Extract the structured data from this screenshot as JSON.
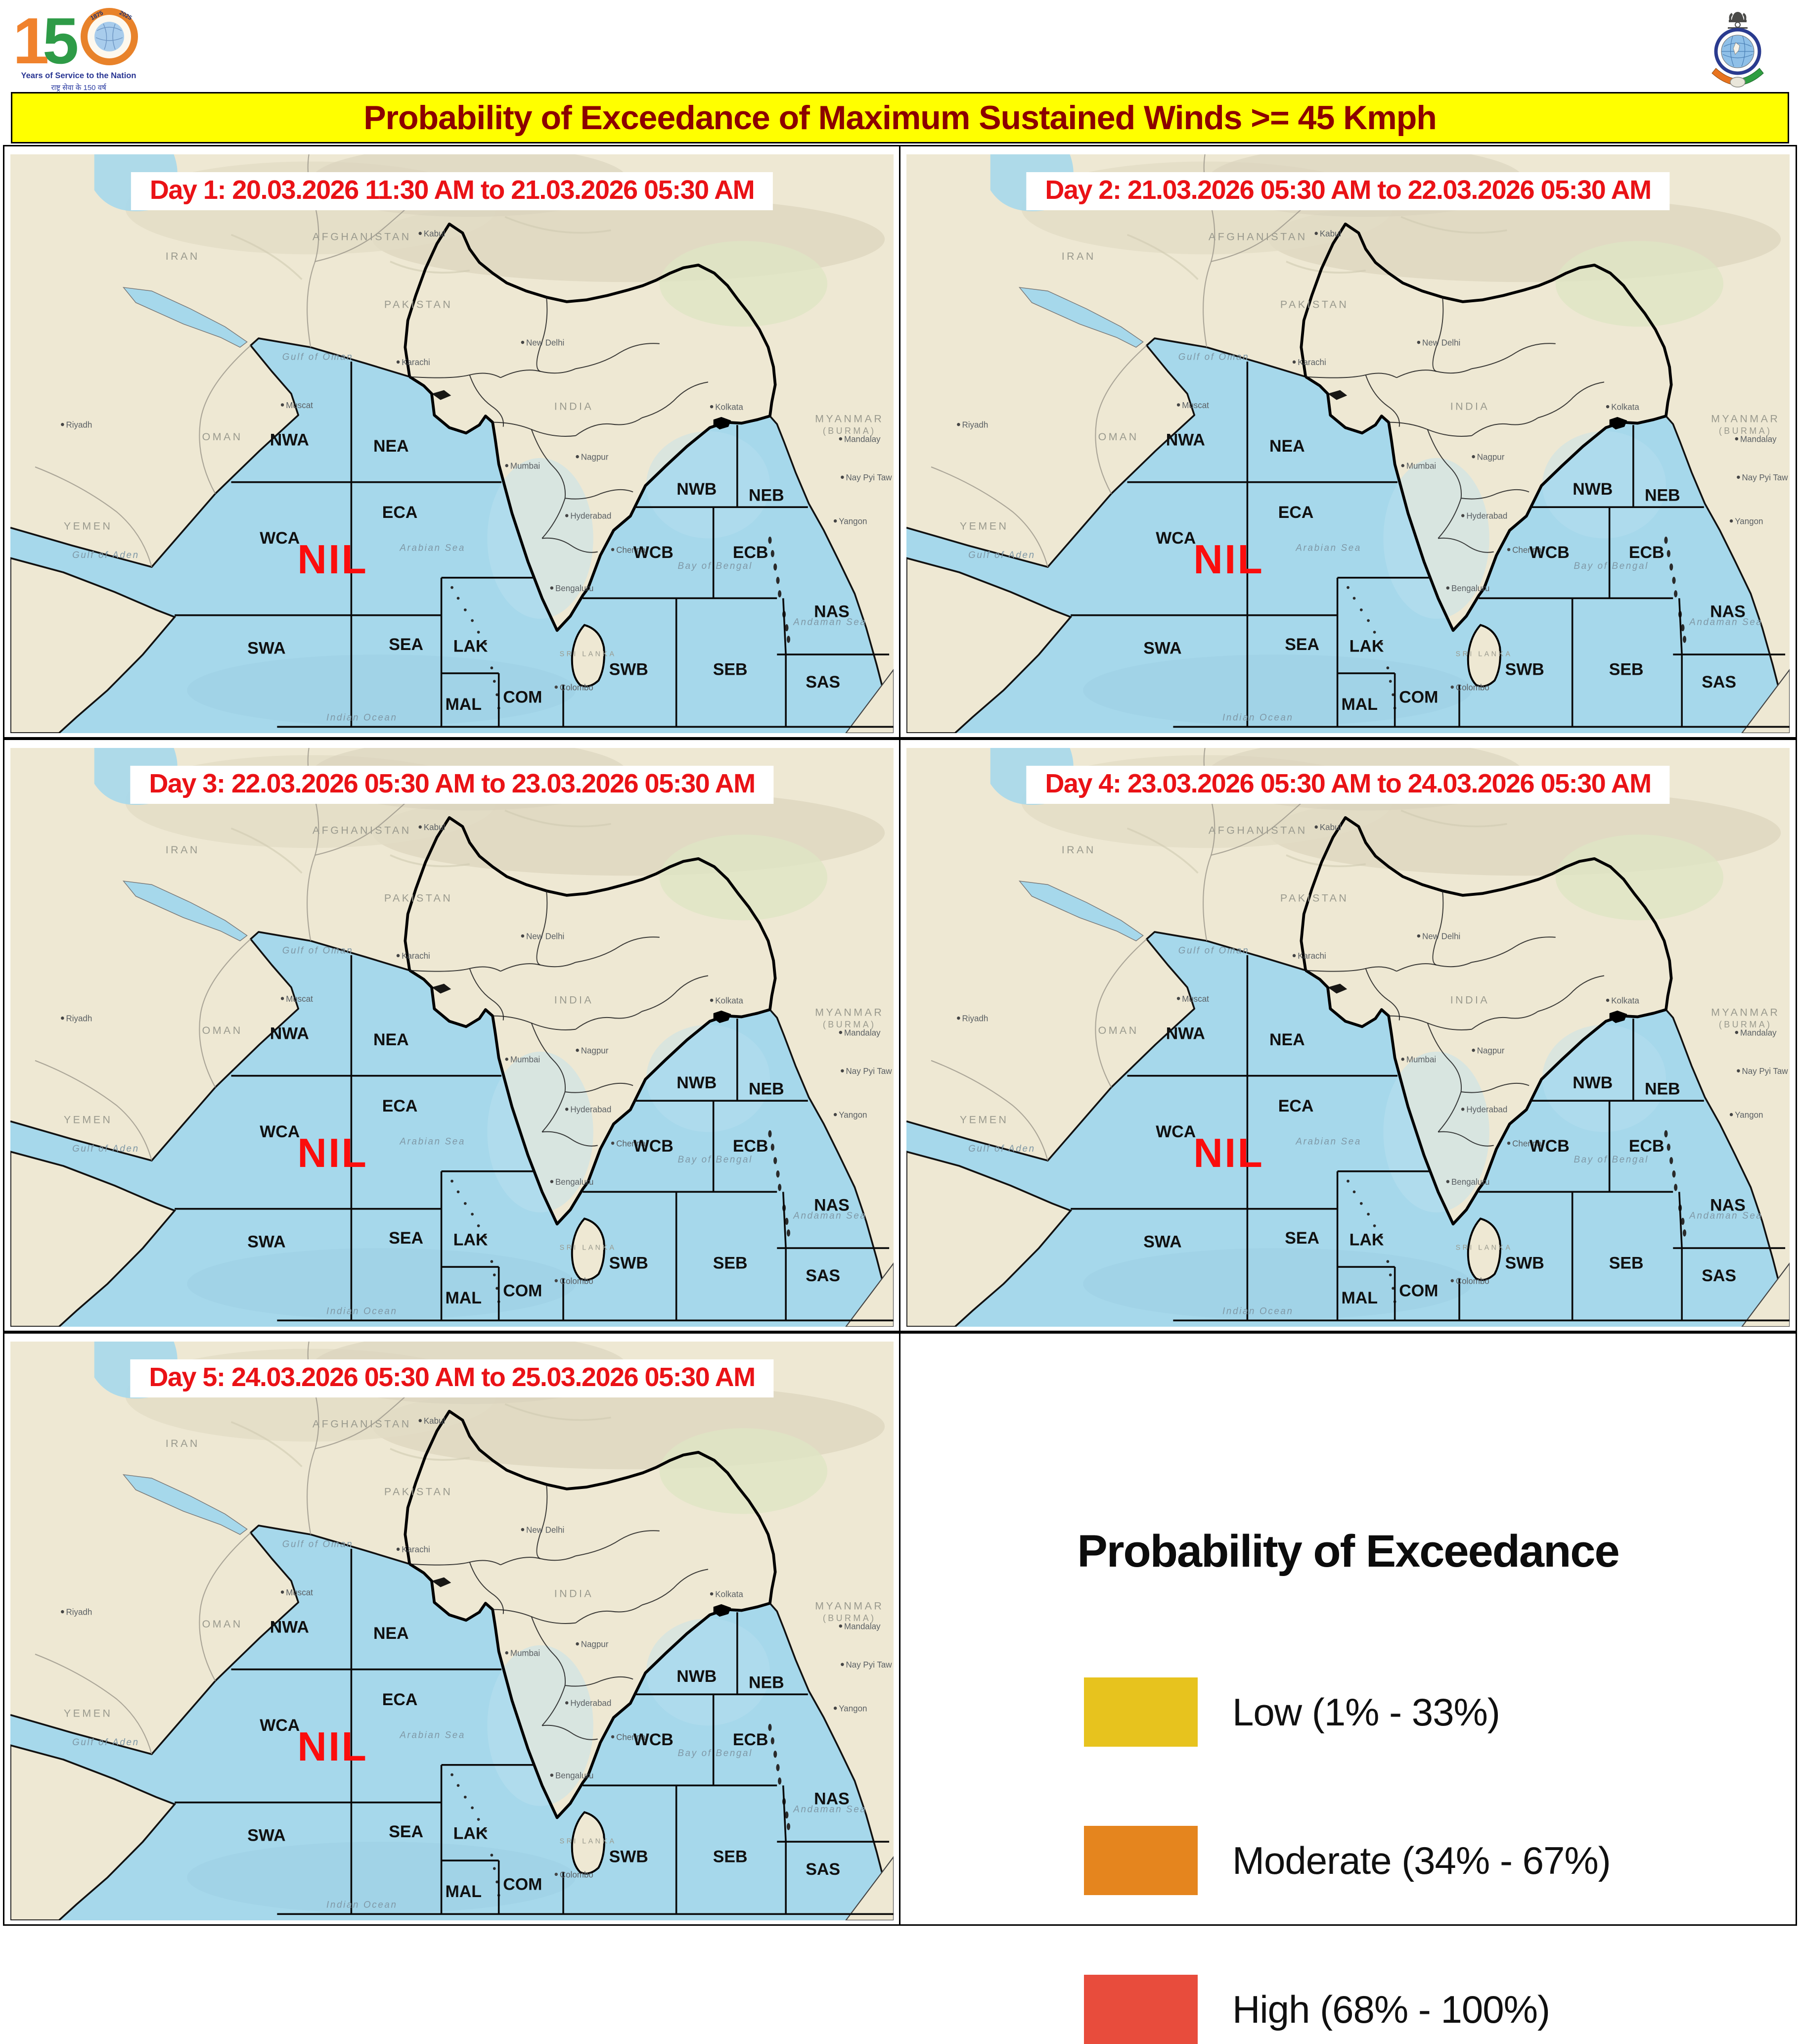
{
  "page": {
    "title": "Probability of Exceedance of Maximum Sustained Winds >= 45 Kmph",
    "title_bar_color": "#FFFF00",
    "title_text_color": "#8B0000"
  },
  "header": {
    "logo_150": {
      "digit_1": "1",
      "digit_5": "5",
      "year_start": "1875",
      "year_end": "2025",
      "tagline_en": "Years of Service to the Nation",
      "tagline_hi": "राष्ट्र सेवा के 150 वर्ष"
    },
    "imd_emblem": {
      "name": "India Meteorological Department emblem"
    }
  },
  "panels": [
    {
      "title": "Day 1: 20.03.2026 11:30 AM to 21.03.2026 05:30 AM",
      "status": "NIL"
    },
    {
      "title": "Day 2: 21.03.2026 05:30 AM to 22.03.2026 05:30 AM",
      "status": "NIL"
    },
    {
      "title": "Day 3: 22.03.2026 05:30 AM to 23.03.2026 05:30 AM",
      "status": "NIL"
    },
    {
      "title": "Day 4: 23.03.2026 05:30 AM to 24.03.2026 05:30 AM",
      "status": "NIL"
    },
    {
      "title": "Day 5: 24.03.2026 05:30 AM to 25.03.2026 05:30 AM",
      "status": "NIL"
    }
  ],
  "map": {
    "zones": [
      "NWA",
      "NEA",
      "WCA",
      "ECA",
      "SWA",
      "SEA",
      "LAK",
      "MAL",
      "COM",
      "NWB",
      "NEB",
      "WCB",
      "ECB",
      "SWB",
      "SEB",
      "NAS",
      "SAS"
    ],
    "countries": [
      "IRAN",
      "AFGHANISTAN",
      "PAKISTAN",
      "OMAN",
      "YEMEN",
      "INDIA",
      "MYANMAR (BURMA)",
      "SRI LANKA"
    ],
    "cities": [
      "Riyadh",
      "Muscat",
      "Kabul",
      "Karachi",
      "New Delhi",
      "Mumbai",
      "Nagpur",
      "Hyderabad",
      "Bengaluru",
      "Chennai",
      "Kolkata",
      "Colombo",
      "Mandalay",
      "Nay Pyi Taw",
      "Yangon"
    ],
    "sea_labels": [
      "Arabian Sea",
      "Bay of Bengal",
      "Gulf of Aden",
      "Gulf of Oman",
      "Andaman Sea",
      "Indian Ocean"
    ],
    "colors": {
      "ocean": "#A6D8EB",
      "land": "#EEE8D3",
      "zone_line": "#0A0A0A",
      "nil_text": "#FB0D0D",
      "header_red": "#EA1216"
    }
  },
  "legend": {
    "title": "Probability of Exceedance",
    "items": [
      {
        "label": "Low (1% - 33%)",
        "color": "#E7C31E"
      },
      {
        "label": "Moderate (34% - 67%)",
        "color": "#E5851E"
      },
      {
        "label": "High (68% - 100%)",
        "color": "#E84C3C"
      }
    ]
  }
}
